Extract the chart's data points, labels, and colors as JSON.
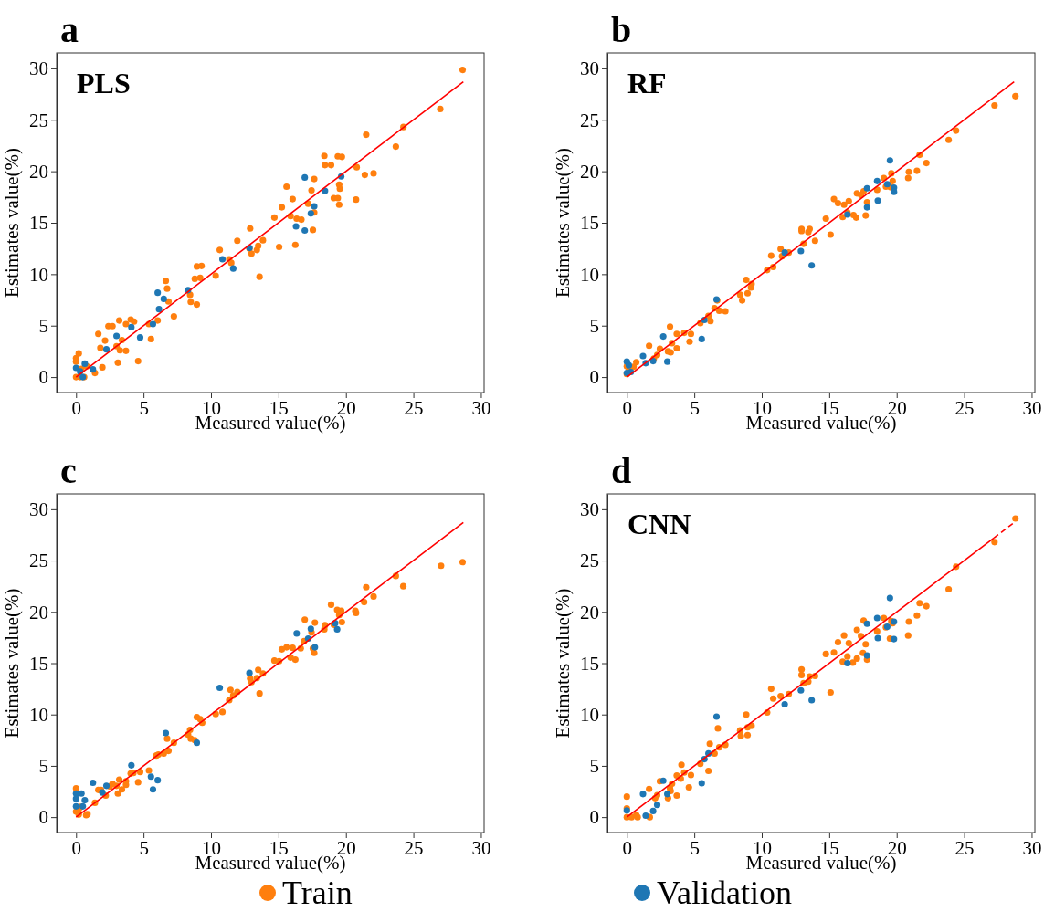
{
  "chart_data": [
    {
      "type": "scatter",
      "title": "PLS",
      "annotations": [
        "a"
      ],
      "xlabel": "Measured value(%)",
      "ylabel": "Estimates value(%)",
      "xlim": [
        -1.44,
        30.24
      ],
      "ylim": [
        -1.5,
        31.5
      ],
      "xticks": [
        0,
        5,
        10,
        15,
        20,
        25,
        30
      ],
      "yticks": [
        0,
        5,
        10,
        15,
        20,
        25,
        30
      ],
      "grid": false,
      "legend": false,
      "marker": "circle",
      "series": [
        {
          "color": "#ff7f0e",
          "x": [
            28.65,
            26.99,
            24.26,
            21.5,
            23.7,
            18.4,
            18.45,
            19.4,
            19.7,
            18.9,
            20.8,
            21.4,
            22.05,
            17.65,
            17.45,
            19.5,
            19.55,
            19.1,
            19.4,
            19.5,
            20.75,
            15.6,
            16.05,
            15.25,
            15.9,
            16.35,
            16.7,
            17.2,
            17.65,
            14.7,
            17.55,
            12.9,
            13.85,
            15.05,
            16.25,
            12.85,
            13.0,
            13.5,
            13.4,
            13.6,
            11.95,
            10.65,
            11.35,
            11.5,
            10.35,
            8.95,
            9.3,
            9.2,
            8.8,
            8.45,
            8.5,
            8.95,
            6.65,
            6.75,
            6.85,
            7.25,
            6.05,
            5.4,
            5.55,
            4.6,
            4.05,
            4.3,
            3.7,
            3.2,
            2.4,
            2.7,
            1.65,
            2.15,
            1.8,
            3.4,
            3.0,
            3.25,
            3.7,
            3.1,
            1.95,
            1.4,
            0,
            0,
            0.2,
            0,
            0.4,
            0.6,
            0.3,
            0.8
          ],
          "values": [
            29.85,
            26.05,
            24.3,
            23.55,
            22.4,
            21.5,
            20.6,
            21.45,
            21.4,
            20.6,
            20.4,
            19.65,
            19.8,
            19.25,
            18.15,
            18.7,
            18.3,
            17.4,
            17.4,
            16.75,
            17.25,
            18.5,
            17.3,
            16.5,
            15.65,
            15.4,
            15.3,
            16.85,
            16.0,
            15.5,
            14.3,
            14.45,
            13.3,
            12.65,
            12.85,
            12.5,
            12.0,
            12.75,
            12.35,
            9.75,
            13.25,
            12.35,
            11.45,
            11.1,
            9.85,
            10.75,
            10.8,
            9.65,
            9.55,
            8.0,
            7.3,
            7.05,
            9.35,
            8.6,
            7.35,
            5.9,
            5.5,
            5.15,
            3.7,
            1.55,
            5.6,
            5.4,
            5.15,
            5.5,
            4.95,
            4.95,
            4.2,
            3.55,
            2.85,
            3.6,
            3.0,
            2.6,
            2.55,
            1.4,
            0.95,
            0.4,
            1.85,
            1.5,
            2.3,
            0,
            0.8,
            0,
            0,
            1.05
          ]
        },
        {
          "color": "#1f77b4",
          "x": [
            16.95,
            19.65,
            18.45,
            17.65,
            17.4,
            16.3,
            16.95,
            12.85,
            10.85,
            11.65,
            8.3,
            6.05,
            6.5,
            6.15,
            5.7,
            4.1,
            4.75,
            3.0,
            2.25,
            0,
            0.65,
            1.25,
            0.3,
            0.5
          ],
          "values": [
            19.4,
            19.5,
            18.1,
            16.6,
            15.9,
            14.65,
            14.25,
            12.55,
            11.45,
            10.55,
            8.45,
            8.2,
            7.6,
            6.6,
            5.15,
            4.85,
            3.85,
            4.0,
            2.7,
            0.9,
            1.3,
            0.75,
            0.55,
            0
          ]
        },
        {
          "type": "line",
          "color": "#ff0000",
          "marker": "none",
          "line_style": "solid",
          "x": [
            0,
            28.7
          ],
          "values": [
            0,
            28.7
          ]
        }
      ]
    },
    {
      "type": "scatter",
      "title": "RF",
      "annotations": [
        "b"
      ],
      "xlabel": "Measured value(%)",
      "ylabel": "Estimates value(%)",
      "xlim": [
        -1.44,
        30.24
      ],
      "ylim": [
        -1.5,
        31.5
      ],
      "xticks": [
        0,
        5,
        10,
        15,
        20,
        25,
        30
      ],
      "yticks": [
        0,
        5,
        10,
        15,
        20,
        25,
        30
      ],
      "grid": false,
      "legend": false,
      "marker": "circle",
      "series": [
        {
          "color": "#ff7f0e",
          "x": [
            28.8,
            27.25,
            24.4,
            23.85,
            21.7,
            22.2,
            20.9,
            20.85,
            21.5,
            19.6,
            19.05,
            19.7,
            19.2,
            19.55,
            18.55,
            17.05,
            17.55,
            17.35,
            17.8,
            17.7,
            17.0,
            16.8,
            16.45,
            16.1,
            15.65,
            15.35,
            16.0,
            16.35,
            14.75,
            15.1,
            12.95,
            12.95,
            13.55,
            13.45,
            13.95,
            13.1,
            11.4,
            12.0,
            11.5,
            10.7,
            10.85,
            10.4,
            8.85,
            9.25,
            9.2,
            8.95,
            8.4,
            8.55,
            6.7,
            6.5,
            6.85,
            7.3,
            6.05,
            6.2,
            5.45,
            3.2,
            3.7,
            4.25,
            4.75,
            4.65,
            3.35,
            3.7,
            1.65,
            2.45,
            3.05,
            3.25,
            2.25,
            2.0,
            0.7,
            0.5,
            0,
            0.15,
            0
          ],
          "values": [
            27.3,
            26.4,
            23.95,
            23.05,
            21.6,
            20.8,
            19.95,
            19.35,
            20.05,
            19.8,
            19.35,
            19.05,
            18.5,
            18.45,
            18.2,
            17.85,
            18.05,
            17.7,
            17.0,
            15.7,
            15.5,
            15.75,
            17.1,
            16.75,
            16.9,
            17.3,
            15.55,
            16.0,
            15.4,
            13.85,
            14.4,
            14.2,
            14.4,
            14.1,
            13.25,
            12.95,
            12.45,
            12.1,
            11.75,
            11.8,
            10.7,
            10.4,
            9.45,
            9.05,
            8.7,
            8.15,
            8.0,
            7.45,
            7.45,
            6.7,
            6.45,
            6.4,
            5.95,
            5.45,
            5.25,
            4.9,
            4.2,
            4.3,
            4.2,
            3.45,
            3.3,
            2.8,
            3.05,
            2.75,
            2.5,
            2.4,
            2.15,
            1.8,
            1.45,
            1.0,
            0.3,
            0.85,
            1.05
          ]
        },
        {
          "color": "#1f77b4",
          "x": [
            19.5,
            18.55,
            19.3,
            19.8,
            19.8,
            17.8,
            17.8,
            18.6,
            16.35,
            11.7,
            12.9,
            13.7,
            6.65,
            5.75,
            5.55,
            2.7,
            3.0,
            1.2,
            1.4,
            1.95,
            0,
            0.15,
            0.3,
            0
          ],
          "values": [
            21.05,
            19.05,
            18.75,
            18.4,
            18.0,
            18.35,
            16.5,
            17.15,
            15.8,
            12.1,
            12.25,
            10.85,
            7.55,
            5.55,
            3.7,
            3.95,
            1.5,
            2.05,
            1.35,
            1.55,
            1.5,
            1.15,
            0.5,
            0.4
          ]
        },
        {
          "type": "line",
          "color": "#ff0000",
          "marker": "none",
          "line_style": "solid",
          "x": [
            0,
            28.7
          ],
          "values": [
            0,
            28.7
          ]
        }
      ]
    },
    {
      "type": "scatter",
      "annotations": [
        "c"
      ],
      "xlabel": "Measured value(%)",
      "ylabel": "Estimates value(%)",
      "xlim": [
        -1.44,
        30.24
      ],
      "ylim": [
        -1.5,
        31.5
      ],
      "xticks": [
        0,
        5,
        10,
        15,
        20,
        25,
        30
      ],
      "yticks": [
        0,
        5,
        10,
        15,
        20,
        25,
        30
      ],
      "grid": false,
      "legend": "bottom",
      "marker": "circle",
      "series": [
        {
          "name": "Train",
          "color": "#ff7f0e",
          "x": [
            28.65,
            27.05,
            24.25,
            23.7,
            21.5,
            21.35,
            22.05,
            20.7,
            20.75,
            18.9,
            19.35,
            19.65,
            19.5,
            19.7,
            19.1,
            18.4,
            18.45,
            16.95,
            17.45,
            17.7,
            17.55,
            17.65,
            16.9,
            16.65,
            16.05,
            15.6,
            15.25,
            15.9,
            16.25,
            14.7,
            15.05,
            13.5,
            12.9,
            13.4,
            13.0,
            13.85,
            13.6,
            11.95,
            11.45,
            11.65,
            11.35,
            10.85,
            10.35,
            8.95,
            9.2,
            9.35,
            8.45,
            8.3,
            8.5,
            8.8,
            7.25,
            6.75,
            6.85,
            6.5,
            6.1,
            5.95,
            5.4,
            4.75,
            4.25,
            4.05,
            4.6,
            3.2,
            3.7,
            3.7,
            3.0,
            2.7,
            2.5,
            3.4,
            3.1,
            1.65,
            1.85,
            2.2,
            1.4,
            0.85,
            0.75,
            0,
            0,
            0.2,
            0.3,
            0.2
          ],
          "values": [
            24.85,
            24.5,
            22.5,
            23.5,
            22.4,
            20.95,
            21.5,
            20.1,
            19.9,
            20.7,
            20.2,
            20.1,
            19.7,
            19.0,
            18.75,
            18.3,
            18.7,
            19.25,
            18.0,
            18.95,
            16.45,
            16.0,
            17.15,
            16.45,
            16.5,
            16.55,
            16.35,
            15.55,
            15.35,
            15.25,
            15.2,
            14.35,
            13.5,
            13.55,
            13.15,
            14.0,
            12.05,
            12.2,
            12.4,
            11.85,
            11.4,
            10.25,
            10.05,
            9.75,
            9.55,
            9.2,
            8.5,
            8.05,
            7.65,
            7.5,
            7.25,
            7.65,
            6.45,
            6.2,
            6.1,
            6.0,
            4.55,
            4.4,
            4.3,
            4.25,
            3.4,
            3.65,
            3.5,
            3.15,
            3.05,
            3.25,
            3.0,
            2.7,
            2.3,
            2.65,
            2.65,
            2.1,
            1.4,
            0.3,
            0.2,
            2.8,
            0.55,
            0.75,
            1.0,
            0.25
          ]
        },
        {
          "name": "Validation",
          "color": "#1f77b4",
          "x": [
            10.65,
            12.85,
            16.35,
            17.2,
            17.4,
            17.7,
            19.2,
            19.35,
            8.95,
            6.65,
            4.1,
            5.55,
            6.05,
            5.7,
            1.25,
            2.25,
            1.95,
            0,
            0.4,
            0,
            0.65,
            0,
            0.5
          ],
          "values": [
            12.6,
            14.05,
            17.9,
            17.4,
            18.35,
            16.55,
            18.9,
            18.3,
            7.25,
            8.2,
            5.05,
            3.95,
            3.6,
            2.7,
            3.35,
            3.05,
            2.4,
            2.3,
            2.3,
            1.8,
            1.65,
            1.05,
            1.05
          ]
        },
        {
          "type": "line",
          "color": "#ff0000",
          "marker": "none",
          "line_style": "solid",
          "x": [
            0,
            28.7
          ],
          "values": [
            0,
            28.7
          ]
        }
      ]
    },
    {
      "type": "scatter",
      "title": "CNN",
      "annotations": [
        "d"
      ],
      "xlabel": "Measured value(%)",
      "ylabel": "Estimates value(%)",
      "xlim": [
        -1.44,
        30.24
      ],
      "ylim": [
        -1.5,
        31.5
      ],
      "xticks": [
        0,
        5,
        10,
        15,
        20,
        25,
        30
      ],
      "yticks": [
        0,
        5,
        10,
        15,
        20,
        25,
        30
      ],
      "grid": false,
      "legend": false,
      "marker": "circle",
      "series": [
        {
          "color": "#ff7f0e",
          "x": [
            28.8,
            27.25,
            24.4,
            23.85,
            21.7,
            22.2,
            21.5,
            20.9,
            20.85,
            19.05,
            19.6,
            19.7,
            19.2,
            19.5,
            18.55,
            17.55,
            17.05,
            17.35,
            17.7,
            17.8,
            17.5,
            17.05,
            16.75,
            16.45,
            16.1,
            15.65,
            16.0,
            16.35,
            15.35,
            14.75,
            15.1,
            12.95,
            12.95,
            13.55,
            13.45,
            13.95,
            13.1,
            10.7,
            11.4,
            10.85,
            12.0,
            10.4,
            8.85,
            9.25,
            8.95,
            8.4,
            8.45,
            8.95,
            6.75,
            7.3,
            6.85,
            6.15,
            6.5,
            5.45,
            6.05,
            4.05,
            4.25,
            3.7,
            4.75,
            4.0,
            4.6,
            2.45,
            3.35,
            3.2,
            3.25,
            3.05,
            3.7,
            1.65,
            2.25,
            2.1,
            1.7,
            0,
            0,
            0,
            0.35,
            0.7,
            0.8
          ],
          "values": [
            29.1,
            26.8,
            24.4,
            22.2,
            20.85,
            20.55,
            19.65,
            19.05,
            17.7,
            19.4,
            19.1,
            18.9,
            18.5,
            17.4,
            18.1,
            19.15,
            18.25,
            17.65,
            16.85,
            15.35,
            16.0,
            15.45,
            15.05,
            16.95,
            17.7,
            17.05,
            15.15,
            15.65,
            16.05,
            15.9,
            12.15,
            14.4,
            13.85,
            13.7,
            13.2,
            13.75,
            13.05,
            12.5,
            11.8,
            11.55,
            12.0,
            10.2,
            10.0,
            8.9,
            8.75,
            8.45,
            7.9,
            8.0,
            8.65,
            7.05,
            6.8,
            7.15,
            6.2,
            5.2,
            4.5,
            5.1,
            4.35,
            4.05,
            4.1,
            3.75,
            2.9,
            3.5,
            3.25,
            2.8,
            2.55,
            1.85,
            2.1,
            2.75,
            2.15,
            1.85,
            0,
            2.0,
            0.85,
            0,
            0,
            0.2,
            0
          ]
        },
        {
          "color": "#1f77b4",
          "x": [
            19.5,
            18.55,
            17.8,
            19.8,
            19.3,
            18.6,
            19.8,
            17.8,
            16.35,
            12.9,
            11.7,
            13.7,
            6.65,
            6.05,
            5.75,
            5.55,
            2.7,
            3.0,
            1.2,
            2.25,
            1.95,
            1.4,
            0
          ],
          "values": [
            21.35,
            19.4,
            18.85,
            19.05,
            18.55,
            17.45,
            17.35,
            15.75,
            15.0,
            12.35,
            11.0,
            11.4,
            9.8,
            6.2,
            5.65,
            3.3,
            3.55,
            2.25,
            2.25,
            1.2,
            0.6,
            0.15,
            0.65
          ]
        },
        {
          "type": "line",
          "color": "#ff0000",
          "marker": "none",
          "line_style": "solid",
          "x": [
            0,
            27.2
          ],
          "values": [
            0,
            27.2
          ]
        },
        {
          "type": "line",
          "color": "#ff0000",
          "marker": "none",
          "line_style": "dashed",
          "x": [
            27.2,
            28.7
          ],
          "values": [
            27.2,
            28.7
          ]
        }
      ]
    }
  ]
}
